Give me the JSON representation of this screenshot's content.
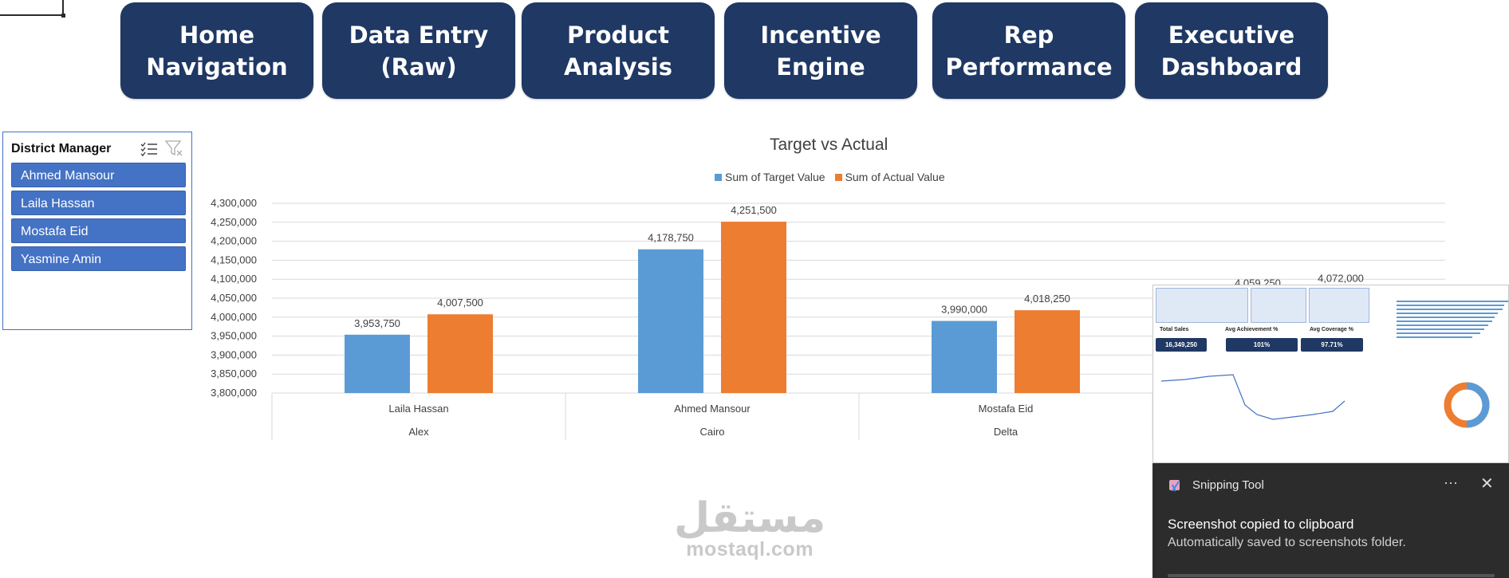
{
  "nav": {
    "home": "Home\nNavigation",
    "data_entry": "Data Entry\n(Raw)",
    "product": "Product\nAnalysis",
    "incentive": "Incentive\nEngine",
    "rep": "Rep\nPerformance",
    "executive": "Executive\nDashboard"
  },
  "slicer": {
    "title": "District Manager",
    "items": [
      "Ahmed Mansour",
      "Laila Hassan",
      "Mostafa Eid",
      "Yasmine Amin"
    ]
  },
  "chart_data": {
    "type": "bar",
    "title": "Target vs Actual",
    "series": [
      {
        "name": "Sum of Target Value",
        "color": "#5b9bd5",
        "values": [
          3953750,
          4178750,
          3990000,
          4059250
        ]
      },
      {
        "name": "Sum of Actual Value",
        "color": "#ed7d31",
        "values": [
          4007500,
          4251500,
          4018250,
          4072000
        ]
      }
    ],
    "categories": [
      "Laila Hassan",
      "Ahmed Mansour",
      "Mostafa Eid",
      ""
    ],
    "groups": [
      "Alex",
      "Cairo",
      "Delta",
      ""
    ],
    "labels_target": [
      "3,953,750",
      "4,178,750",
      "3,990,000",
      "4,059,250"
    ],
    "labels_actual": [
      "4,007,500",
      "4,251,500",
      "4,018,250",
      "4,072,000"
    ],
    "ylim": [
      3800000,
      4300000
    ],
    "yticks": [
      "4,300,000",
      "4,250,000",
      "4,200,000",
      "4,150,000",
      "4,100,000",
      "4,050,000",
      "4,000,000",
      "3,950,000",
      "3,900,000",
      "3,850,000",
      "3,800,000"
    ],
    "legend_position": "top"
  },
  "snip_thumb": {
    "kpis": [
      {
        "label": "Total Sales",
        "value": "16,349,250"
      },
      {
        "label": "Avg Achievement %",
        "value": "101%"
      },
      {
        "label": "Avg Coverage %",
        "value": "97.71%"
      }
    ]
  },
  "toast": {
    "app": "Snipping Tool",
    "more": "···",
    "close": "✕",
    "heading": "Screenshot copied to clipboard",
    "sub": "Automatically saved to screenshots folder."
  },
  "watermark": {
    "arabic": "مستقل",
    "latin": "mostaql.com"
  },
  "colors": {
    "nav": "#1f3864",
    "slicer": "#4472c4",
    "target": "#5b9bd5",
    "actual": "#ed7d31"
  }
}
